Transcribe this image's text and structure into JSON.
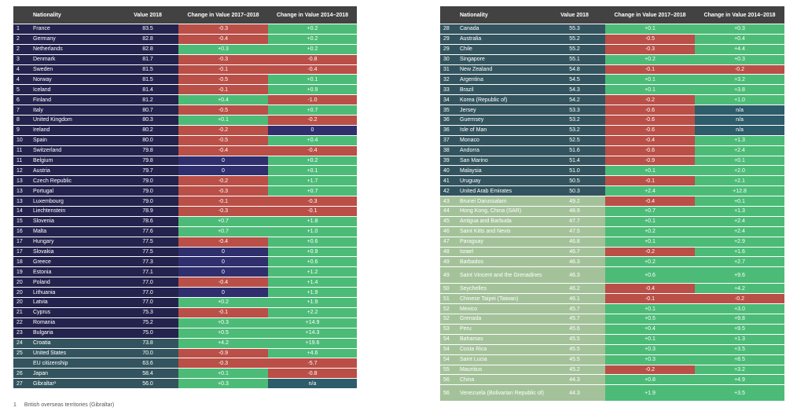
{
  "headers": {
    "nationality": "Nationality",
    "value": "Value 2018",
    "change1": "Change in Value 2017–2018",
    "change2": "Change in Value 2014–2018"
  },
  "colors": {
    "tier_dark_navy": "#23234d",
    "tier_teal": "#33545e",
    "tier_sage": "#a4c29a",
    "positive_green": "#4cbb77",
    "negative_red": "#b94f47",
    "zero_navy": "#2f2f6e",
    "header_grey": "#424242"
  },
  "left_rows": [
    {
      "rank": "1",
      "name": "France",
      "value": "83.5",
      "c1": "-0.3",
      "c2": "+0.2",
      "tier": "n"
    },
    {
      "rank": "2",
      "name": "Germany",
      "value": "82.8",
      "c1": "-0.4",
      "c2": "+0.2",
      "tier": "n"
    },
    {
      "rank": "2",
      "name": "Netherlands",
      "value": "82.8",
      "c1": "+0.3",
      "c2": "+0.2",
      "tier": "n"
    },
    {
      "rank": "3",
      "name": "Denmark",
      "value": "81.7",
      "c1": "-0.3",
      "c2": "-0.8",
      "tier": "n"
    },
    {
      "rank": "4",
      "name": "Sweden",
      "value": "81.5",
      "c1": "-0.1",
      "c2": "-0.4",
      "tier": "n"
    },
    {
      "rank": "4",
      "name": "Norway",
      "value": "81.5",
      "c1": "-0.5",
      "c2": "+0.1",
      "tier": "n"
    },
    {
      "rank": "5",
      "name": "Iceland",
      "value": "81.4",
      "c1": "-0.1",
      "c2": "+0.9",
      "tier": "n"
    },
    {
      "rank": "6",
      "name": "Finland",
      "value": "81.2",
      "c1": "+0.4",
      "c2": "-1.0",
      "tier": "n"
    },
    {
      "rank": "7",
      "name": "Italy",
      "value": "80.7",
      "c1": "-0.5",
      "c2": "+0.7",
      "tier": "n"
    },
    {
      "rank": "8",
      "name": "United Kingdom",
      "value": "80.3",
      "c1": "+0.1",
      "c2": "-0.2",
      "tier": "n"
    },
    {
      "rank": "9",
      "name": "Ireland",
      "value": "80.2",
      "c1": "-0.2",
      "c2": "0",
      "tier": "n"
    },
    {
      "rank": "10",
      "name": "Spain",
      "value": "80.0",
      "c1": "-0.5",
      "c2": "+0.4",
      "tier": "n"
    },
    {
      "rank": "11",
      "name": "Switzerland",
      "value": "79.8",
      "c1": "-0.4",
      "c2": "-0.4",
      "tier": "n"
    },
    {
      "rank": "11",
      "name": "Belgium",
      "value": "79.8",
      "c1": "0",
      "c2": "+0.2",
      "tier": "n"
    },
    {
      "rank": "12",
      "name": "Austria",
      "value": "79.7",
      "c1": "0",
      "c2": "+0.1",
      "tier": "n"
    },
    {
      "rank": "13",
      "name": "Czech Republic",
      "value": "79.0",
      "c1": "-0.2",
      "c2": "+1.7",
      "tier": "n"
    },
    {
      "rank": "13",
      "name": "Portugal",
      "value": "79.0",
      "c1": "-0.3",
      "c2": "+0.7",
      "tier": "n"
    },
    {
      "rank": "13",
      "name": "Luxembourg",
      "value": "79.0",
      "c1": "-0.1",
      "c2": "-0.3",
      "tier": "n"
    },
    {
      "rank": "14",
      "name": "Liechtenstein",
      "value": "78.9",
      "c1": "-0.3",
      "c2": "-0.1",
      "tier": "n"
    },
    {
      "rank": "15",
      "name": "Slovenia",
      "value": "78.6",
      "c1": "+0.7",
      "c2": "+1.8",
      "tier": "n"
    },
    {
      "rank": "16",
      "name": "Malta",
      "value": "77.6",
      "c1": "+0.7",
      "c2": "+1.0",
      "tier": "n"
    },
    {
      "rank": "17",
      "name": "Hungary",
      "value": "77.5",
      "c1": "-0.4",
      "c2": "+0.6",
      "tier": "n"
    },
    {
      "rank": "17",
      "name": "Slovakia",
      "value": "77.5",
      "c1": "0",
      "c2": "+0.9",
      "tier": "n"
    },
    {
      "rank": "18",
      "name": "Greece",
      "value": "77.3",
      "c1": "0",
      "c2": "+0.6",
      "tier": "n"
    },
    {
      "rank": "19",
      "name": "Estonia",
      "value": "77.1",
      "c1": "0",
      "c2": "+1.2",
      "tier": "n"
    },
    {
      "rank": "20",
      "name": "Poland",
      "value": "77.0",
      "c1": "-0.4",
      "c2": "+1.4",
      "tier": "n"
    },
    {
      "rank": "20",
      "name": "Lithuania",
      "value": "77.0",
      "c1": "0",
      "c2": "+1.9",
      "tier": "n"
    },
    {
      "rank": "20",
      "name": "Latvia",
      "value": "77.0",
      "c1": "+0.2",
      "c2": "+1.9",
      "tier": "n"
    },
    {
      "rank": "21",
      "name": "Cyprus",
      "value": "75.3",
      "c1": "-0.1",
      "c2": "+2.2",
      "tier": "n"
    },
    {
      "rank": "22",
      "name": "Romania",
      "value": "75.2",
      "c1": "+0.3",
      "c2": "+14.9",
      "tier": "n"
    },
    {
      "rank": "23",
      "name": "Bulgaria",
      "value": "75.0",
      "c1": "+0.5",
      "c2": "+14.3",
      "tier": "n"
    },
    {
      "rank": "24",
      "name": "Croatia",
      "value": "73.8",
      "c1": "+4.2",
      "c2": "+19.6",
      "tier": "t"
    },
    {
      "rank": "25",
      "name": "United States",
      "value": "70.0",
      "c1": "-0.9",
      "c2": "+4.6",
      "tier": "t"
    },
    {
      "rank": "",
      "name": "EU citizenship",
      "value": "63.6",
      "c1": "-0.3",
      "c2": "-5.7",
      "tier": "t"
    },
    {
      "rank": "26",
      "name": "Japan",
      "value": "58.4",
      "c1": "+0.1",
      "c2": "-0.8",
      "tier": "t"
    },
    {
      "rank": "27",
      "name": "Gibraltar¹",
      "value": "56.0",
      "c1": "+0.3",
      "c2": "n/a",
      "tier": "t"
    }
  ],
  "right_rows": [
    {
      "rank": "28",
      "name": "Canada",
      "value": "55.3",
      "c1": "+0.1",
      "c2": "+0.3",
      "tier": "t"
    },
    {
      "rank": "29",
      "name": "Australia",
      "value": "55.2",
      "c1": "-0.5",
      "c2": "+0.4",
      "tier": "t"
    },
    {
      "rank": "29",
      "name": "Chile",
      "value": "55.2",
      "c1": "-0.3",
      "c2": "+4.4",
      "tier": "t"
    },
    {
      "rank": "30",
      "name": "Singapore",
      "value": "55.1",
      "c1": "+0.2",
      "c2": "+0.3",
      "tier": "t"
    },
    {
      "rank": "31",
      "name": "New Zealand",
      "value": "54.8",
      "c1": "-0.1",
      "c2": "-0.2",
      "tier": "t"
    },
    {
      "rank": "32",
      "name": "Argentina",
      "value": "54.5",
      "c1": "+0.1",
      "c2": "+3.2",
      "tier": "t"
    },
    {
      "rank": "33",
      "name": "Brazil",
      "value": "54.3",
      "c1": "+0.1",
      "c2": "+3.8",
      "tier": "t"
    },
    {
      "rank": "34",
      "name": "Korea (Republic of)",
      "value": "54.2",
      "c1": "-0.2",
      "c2": "+1.0",
      "tier": "t"
    },
    {
      "rank": "35",
      "name": "Jersey",
      "value": "53.3",
      "c1": "-0.6",
      "c2": "n/a",
      "tier": "t"
    },
    {
      "rank": "36",
      "name": "Guernsey",
      "value": "53.2",
      "c1": "-0.6",
      "c2": "n/a",
      "tier": "t"
    },
    {
      "rank": "36",
      "name": "Isle of Man",
      "value": "53.2",
      "c1": "-0.6",
      "c2": "n/a",
      "tier": "t"
    },
    {
      "rank": "37",
      "name": "Monaco",
      "value": "52.5",
      "c1": "-0.4",
      "c2": "+1.3",
      "tier": "t"
    },
    {
      "rank": "38",
      "name": "Andorra",
      "value": "51.6",
      "c1": "-0.6",
      "c2": "+2.4",
      "tier": "t"
    },
    {
      "rank": "39",
      "name": "San Marino",
      "value": "51.4",
      "c1": "-0.9",
      "c2": "+0.1",
      "tier": "t"
    },
    {
      "rank": "40",
      "name": "Malaysia",
      "value": "51.0",
      "c1": "+0.1",
      "c2": "+2.0",
      "tier": "t"
    },
    {
      "rank": "41",
      "name": "Uruguay",
      "value": "50.5",
      "c1": "-0.1",
      "c2": "+2.1",
      "tier": "t"
    },
    {
      "rank": "42",
      "name": "United Arab Emirates",
      "value": "50.3",
      "c1": "+2.4",
      "c2": "+12.8",
      "tier": "t"
    },
    {
      "rank": "43",
      "name": "Brunei Darussalam",
      "value": "49.2",
      "c1": "-0.4",
      "c2": "+0.1",
      "tier": "s"
    },
    {
      "rank": "44",
      "name": "Hong Kong, China (SAR)",
      "value": "48.9",
      "c1": "+0.7",
      "c2": "+1.3",
      "tier": "s"
    },
    {
      "rank": "45",
      "name": "Antigua and Barbuda",
      "value": "47.7",
      "c1": "+0.1",
      "c2": "+2.4",
      "tier": "s"
    },
    {
      "rank": "46",
      "name": "Saint Kitts and Nevis",
      "value": "47.5",
      "c1": "+0.2",
      "c2": "+2.4",
      "tier": "s"
    },
    {
      "rank": "47",
      "name": "Paraguay",
      "value": "46.8",
      "c1": "+0.1",
      "c2": "+2.9",
      "tier": "s"
    },
    {
      "rank": "48",
      "name": "Israel",
      "value": "46.7",
      "c1": "-0.2",
      "c2": "+1.6",
      "tier": "s"
    },
    {
      "rank": "49",
      "name": "Barbados",
      "value": "46.3",
      "c1": "+0.2",
      "c2": "+2.7",
      "tier": "s"
    },
    {
      "rank": "49",
      "name": "Saint Vincent and the Grenadines",
      "value": "46.3",
      "c1": "+0.6",
      "c2": "+9.6",
      "tier": "s",
      "tall": true
    },
    {
      "rank": "50",
      "name": "Seychelles",
      "value": "46.2",
      "c1": "-0.4",
      "c2": "+4.2",
      "tier": "s"
    },
    {
      "rank": "51",
      "name": "Chinese Taipei (Taiwan)",
      "value": "46.1",
      "c1": "-0.1",
      "c2": "-0.2",
      "tier": "s"
    },
    {
      "rank": "52",
      "name": "Mexico",
      "value": "45.7",
      "c1": "+0.1",
      "c2": "+3.0",
      "tier": "s"
    },
    {
      "rank": "52",
      "name": "Grenada",
      "value": "45.7",
      "c1": "+0.5",
      "c2": "+9.8",
      "tier": "s"
    },
    {
      "rank": "53",
      "name": "Peru",
      "value": "45.6",
      "c1": "+0.4",
      "c2": "+9.5",
      "tier": "s"
    },
    {
      "rank": "54",
      "name": "Bahamas",
      "value": "45.5",
      "c1": "+0.1",
      "c2": "+1.3",
      "tier": "s"
    },
    {
      "rank": "54",
      "name": "Costa Rica",
      "value": "45.5",
      "c1": "+0.3",
      "c2": "+3.5",
      "tier": "s"
    },
    {
      "rank": "54",
      "name": "Saint Lucia",
      "value": "45.5",
      "c1": "+0.3",
      "c2": "+8.5",
      "tier": "s"
    },
    {
      "rank": "55",
      "name": "Mauritius",
      "value": "45.2",
      "c1": "-0.2",
      "c2": "+3.2",
      "tier": "s"
    },
    {
      "rank": "56",
      "name": "China",
      "value": "44.3",
      "c1": "+0.8",
      "c2": "+4.9",
      "tier": "s"
    },
    {
      "rank": "56",
      "name": "Venezuela (Bolivarian Republic of)",
      "value": "44.3",
      "c1": "+1.9",
      "c2": "+3.5",
      "tier": "s",
      "tall": true
    }
  ],
  "footnote": {
    "marker": "1",
    "text": "British overseas territories (Gibraltar)"
  }
}
